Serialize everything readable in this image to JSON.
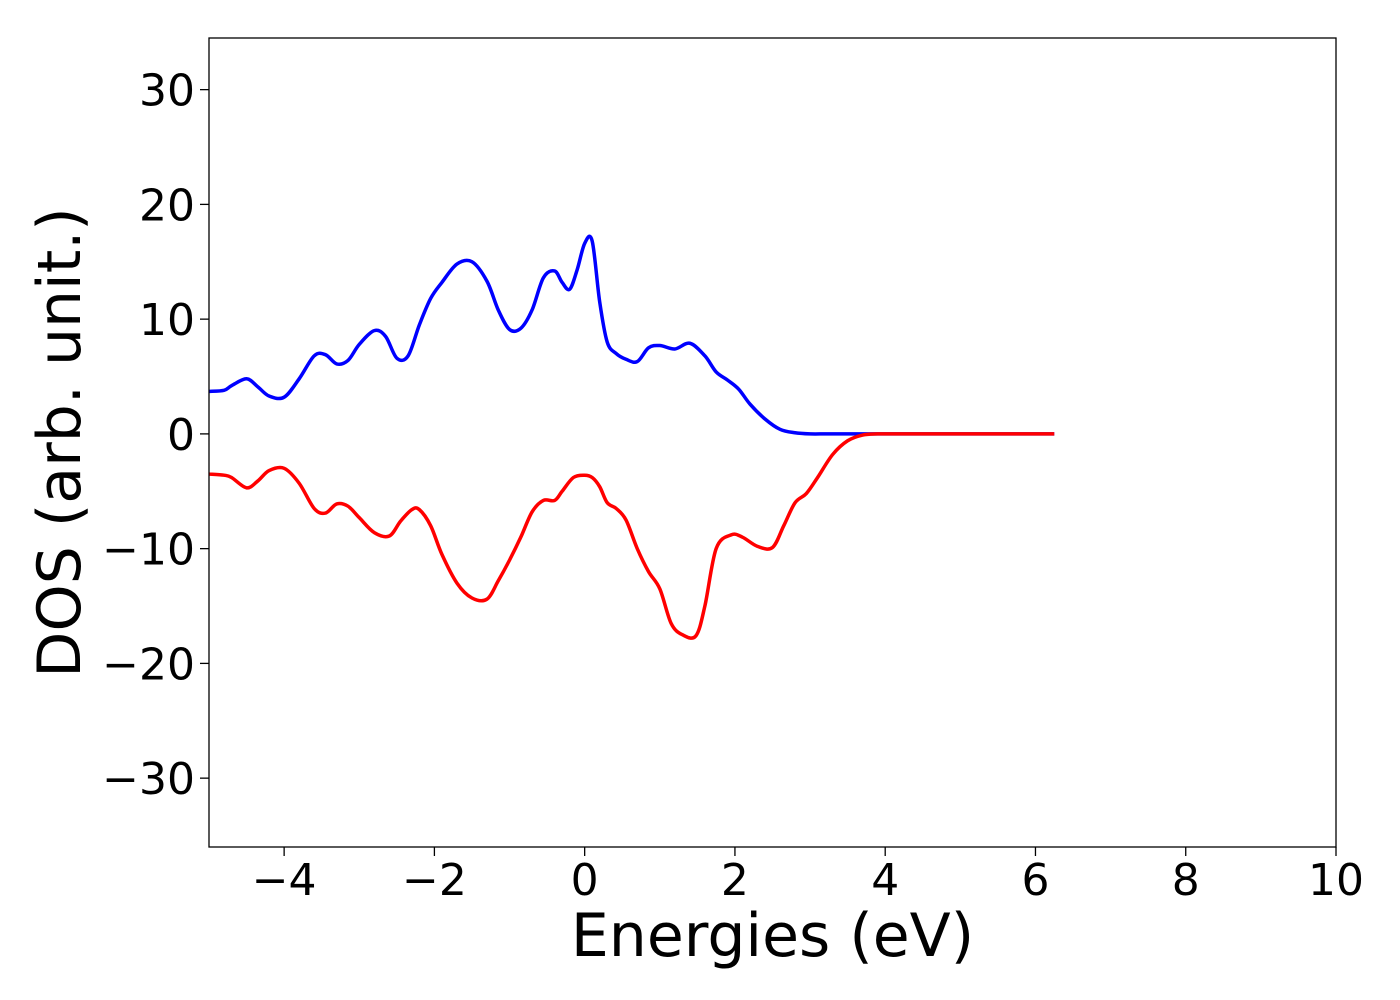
{
  "chart_data": {
    "type": "line",
    "title": "",
    "xlabel": "Energies (eV)",
    "ylabel": "DOS (arb. unit.)",
    "xlim": [
      -5,
      10
    ],
    "ylim": [
      -36,
      34.5
    ],
    "xticks": [
      -4,
      -2,
      0,
      2,
      4,
      6,
      8,
      10
    ],
    "yticks": [
      -30,
      -20,
      -10,
      0,
      10,
      20,
      30
    ],
    "xtick_labels": [
      "−4",
      "−2",
      "0",
      "2",
      "4",
      "6",
      "8",
      "10"
    ],
    "ytick_labels": [
      "−30",
      "−20",
      "−10",
      "0",
      "10",
      "20",
      "30"
    ],
    "grid": false,
    "legend": "none",
    "series": [
      {
        "color": "#0000ff",
        "x": [
          -5.0,
          -4.8,
          -4.7,
          -4.5,
          -4.35,
          -4.2,
          -4.0,
          -3.8,
          -3.6,
          -3.45,
          -3.3,
          -3.15,
          -3.0,
          -2.8,
          -2.65,
          -2.5,
          -2.35,
          -2.2,
          -2.05,
          -1.9,
          -1.7,
          -1.5,
          -1.3,
          -1.15,
          -1.0,
          -0.85,
          -0.7,
          -0.55,
          -0.4,
          -0.3,
          -0.2,
          -0.1,
          0.0,
          0.1,
          0.2,
          0.3,
          0.42,
          0.55,
          0.7,
          0.85,
          1.0,
          1.2,
          1.4,
          1.6,
          1.75,
          1.9,
          2.05,
          2.2,
          2.4,
          2.6,
          2.8,
          3.0,
          3.2,
          3.4,
          3.6,
          3.8,
          4.0,
          5.0,
          6.25
        ],
        "y": [
          3.7,
          3.8,
          4.2,
          4.8,
          4.1,
          3.3,
          3.2,
          4.8,
          6.8,
          6.9,
          6.1,
          6.4,
          7.8,
          9.0,
          8.5,
          6.6,
          6.8,
          9.5,
          11.8,
          13.2,
          14.8,
          15.0,
          13.3,
          10.8,
          9.1,
          9.2,
          10.8,
          13.6,
          14.2,
          13.2,
          12.6,
          14.3,
          16.6,
          16.8,
          11.5,
          8.0,
          7.0,
          6.5,
          6.3,
          7.5,
          7.7,
          7.4,
          7.9,
          6.8,
          5.4,
          4.7,
          3.9,
          2.6,
          1.3,
          0.4,
          0.1,
          0.0,
          0.0,
          0.0,
          0.0,
          0.0,
          0.0,
          0.0,
          0.0
        ]
      },
      {
        "color": "#ff0000",
        "x": [
          -5.0,
          -4.8,
          -4.7,
          -4.5,
          -4.35,
          -4.2,
          -4.0,
          -3.8,
          -3.6,
          -3.45,
          -3.3,
          -3.15,
          -3.0,
          -2.8,
          -2.6,
          -2.45,
          -2.3,
          -2.2,
          -2.05,
          -1.9,
          -1.7,
          -1.5,
          -1.3,
          -1.15,
          -1.0,
          -0.85,
          -0.7,
          -0.55,
          -0.4,
          -0.3,
          -0.15,
          0.0,
          0.1,
          0.2,
          0.3,
          0.42,
          0.55,
          0.7,
          0.85,
          1.0,
          1.15,
          1.3,
          1.48,
          1.6,
          1.75,
          1.95,
          2.1,
          2.3,
          2.5,
          2.65,
          2.8,
          2.95,
          3.1,
          3.3,
          3.5,
          3.7,
          3.9,
          4.2,
          5.0,
          6.25
        ],
        "y": [
          -3.5,
          -3.6,
          -3.8,
          -4.7,
          -4.1,
          -3.2,
          -3.0,
          -4.3,
          -6.5,
          -6.9,
          -6.1,
          -6.3,
          -7.3,
          -8.6,
          -8.9,
          -7.6,
          -6.6,
          -6.6,
          -8.0,
          -10.5,
          -13.0,
          -14.3,
          -14.4,
          -12.8,
          -11.0,
          -9.0,
          -6.8,
          -5.8,
          -5.8,
          -5.0,
          -3.8,
          -3.6,
          -3.8,
          -4.6,
          -6.0,
          -6.5,
          -7.5,
          -10.0,
          -12.0,
          -13.5,
          -16.5,
          -17.5,
          -17.6,
          -15.0,
          -10.0,
          -8.8,
          -9.0,
          -9.8,
          -9.9,
          -8.0,
          -6.0,
          -5.2,
          -3.8,
          -1.8,
          -0.6,
          -0.1,
          0.0,
          0.0,
          0.0,
          0.0
        ]
      }
    ]
  }
}
